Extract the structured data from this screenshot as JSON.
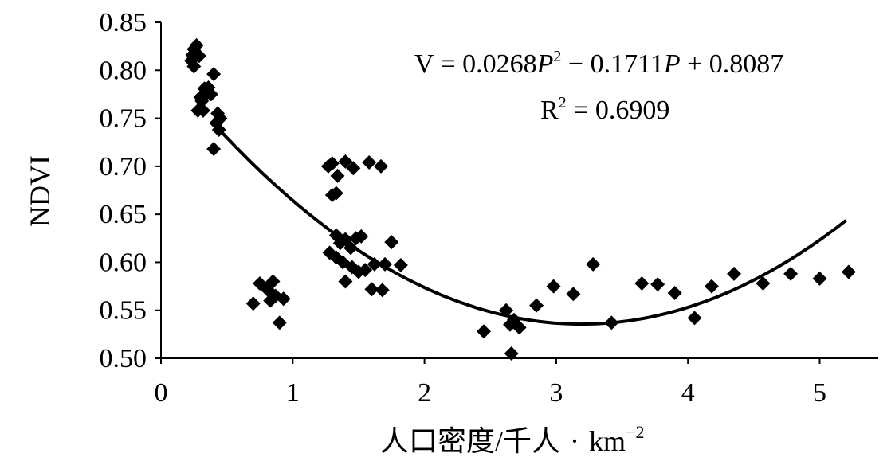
{
  "chart_data": {
    "type": "scatter",
    "title": "",
    "xlabel": "人口密度/千人·km⁻²",
    "xlabel_main": "人口密度/千人",
    "xlabel_dot": "·",
    "xlabel_unit": "km",
    "xlabel_sup": "−2",
    "ylabel": "NDVI",
    "xlim": [
      0,
      5.5
    ],
    "ylim": [
      0.5,
      0.85
    ],
    "xticks": [
      0,
      1,
      2,
      3,
      4,
      5
    ],
    "xtick_labels": [
      "0",
      "1",
      "2",
      "3",
      "4",
      "5"
    ],
    "yticks": [
      0.5,
      0.55,
      0.6,
      0.65,
      0.7,
      0.75,
      0.8,
      0.85
    ],
    "ytick_labels": [
      "0.50",
      "0.55",
      "0.60",
      "0.65",
      "0.70",
      "0.75",
      "0.80",
      "0.85"
    ],
    "marker": "diamond",
    "marker_color": "#000000",
    "grid": false,
    "points": [
      {
        "x": 0.25,
        "y": 0.822
      },
      {
        "x": 0.27,
        "y": 0.826
      },
      {
        "x": 0.24,
        "y": 0.816
      },
      {
        "x": 0.23,
        "y": 0.81
      },
      {
        "x": 0.25,
        "y": 0.804
      },
      {
        "x": 0.29,
        "y": 0.815
      },
      {
        "x": 0.33,
        "y": 0.781
      },
      {
        "x": 0.36,
        "y": 0.782
      },
      {
        "x": 0.3,
        "y": 0.772
      },
      {
        "x": 0.34,
        "y": 0.775
      },
      {
        "x": 0.38,
        "y": 0.775
      },
      {
        "x": 0.31,
        "y": 0.768
      },
      {
        "x": 0.28,
        "y": 0.758
      },
      {
        "x": 0.32,
        "y": 0.758
      },
      {
        "x": 0.4,
        "y": 0.796
      },
      {
        "x": 0.43,
        "y": 0.755
      },
      {
        "x": 0.45,
        "y": 0.75
      },
      {
        "x": 0.42,
        "y": 0.745
      },
      {
        "x": 0.44,
        "y": 0.738
      },
      {
        "x": 0.4,
        "y": 0.718
      },
      {
        "x": 0.7,
        "y": 0.557
      },
      {
        "x": 0.75,
        "y": 0.578
      },
      {
        "x": 0.8,
        "y": 0.573
      },
      {
        "x": 0.85,
        "y": 0.58
      },
      {
        "x": 0.82,
        "y": 0.57
      },
      {
        "x": 0.87,
        "y": 0.565
      },
      {
        "x": 0.83,
        "y": 0.56
      },
      {
        "x": 0.93,
        "y": 0.562
      },
      {
        "x": 0.9,
        "y": 0.537
      },
      {
        "x": 1.27,
        "y": 0.7
      },
      {
        "x": 1.3,
        "y": 0.703
      },
      {
        "x": 1.34,
        "y": 0.69
      },
      {
        "x": 1.4,
        "y": 0.705
      },
      {
        "x": 1.46,
        "y": 0.698
      },
      {
        "x": 1.58,
        "y": 0.704
      },
      {
        "x": 1.67,
        "y": 0.7
      },
      {
        "x": 1.3,
        "y": 0.67
      },
      {
        "x": 1.33,
        "y": 0.672
      },
      {
        "x": 1.28,
        "y": 0.61
      },
      {
        "x": 1.33,
        "y": 0.628
      },
      {
        "x": 1.36,
        "y": 0.62
      },
      {
        "x": 1.4,
        "y": 0.624
      },
      {
        "x": 1.44,
        "y": 0.615
      },
      {
        "x": 1.48,
        "y": 0.625
      },
      {
        "x": 1.52,
        "y": 0.627
      },
      {
        "x": 1.33,
        "y": 0.605
      },
      {
        "x": 1.38,
        "y": 0.6
      },
      {
        "x": 1.45,
        "y": 0.595
      },
      {
        "x": 1.5,
        "y": 0.59
      },
      {
        "x": 1.55,
        "y": 0.592
      },
      {
        "x": 1.62,
        "y": 0.598
      },
      {
        "x": 1.4,
        "y": 0.58
      },
      {
        "x": 1.6,
        "y": 0.572
      },
      {
        "x": 1.68,
        "y": 0.571
      },
      {
        "x": 1.7,
        "y": 0.598
      },
      {
        "x": 1.75,
        "y": 0.621
      },
      {
        "x": 1.82,
        "y": 0.597
      },
      {
        "x": 2.45,
        "y": 0.528
      },
      {
        "x": 2.62,
        "y": 0.55
      },
      {
        "x": 2.68,
        "y": 0.54
      },
      {
        "x": 2.65,
        "y": 0.535
      },
      {
        "x": 2.72,
        "y": 0.532
      },
      {
        "x": 2.66,
        "y": 0.505
      },
      {
        "x": 2.85,
        "y": 0.555
      },
      {
        "x": 2.98,
        "y": 0.575
      },
      {
        "x": 3.13,
        "y": 0.567
      },
      {
        "x": 3.28,
        "y": 0.598
      },
      {
        "x": 3.42,
        "y": 0.537
      },
      {
        "x": 3.65,
        "y": 0.578
      },
      {
        "x": 3.77,
        "y": 0.577
      },
      {
        "x": 3.9,
        "y": 0.568
      },
      {
        "x": 4.05,
        "y": 0.542
      },
      {
        "x": 4.18,
        "y": 0.575
      },
      {
        "x": 4.35,
        "y": 0.588
      },
      {
        "x": 4.57,
        "y": 0.578
      },
      {
        "x": 4.78,
        "y": 0.588
      },
      {
        "x": 5.0,
        "y": 0.583
      },
      {
        "x": 5.22,
        "y": 0.59
      }
    ],
    "fit": {
      "type": "quadratic",
      "a": 0.0268,
      "b": -0.1711,
      "c": 0.8087,
      "x_range": [
        0.45,
        5.2
      ],
      "color": "#000000"
    },
    "annotations": {
      "equation": {
        "pre": "V = 0.0268",
        "var1": "P",
        "sup": "2",
        "mid": " − 0.1711",
        "var2": "P",
        "post": " + 0.8087"
      },
      "r2": {
        "pre": "R",
        "sup": "2",
        "post": " = 0.6909"
      }
    }
  }
}
